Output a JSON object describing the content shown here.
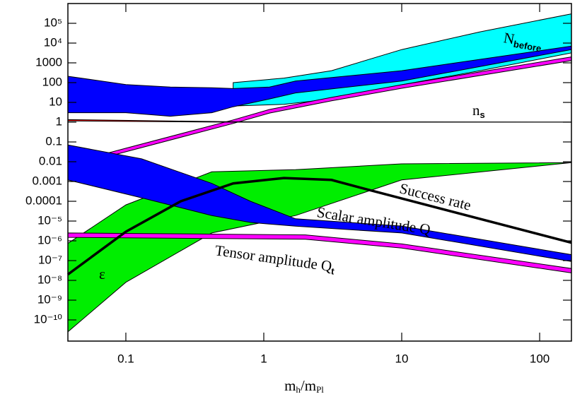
{
  "chart_data": {
    "type": "band",
    "xlabel": [
      "m",
      "h",
      "/m",
      "Pl"
    ],
    "xlim": [
      0.038,
      170
    ],
    "ylim": [
      8.5e-12,
      1000000
    ],
    "log_x": true,
    "log_y": true,
    "xticks": [
      0.1,
      1,
      10,
      100
    ],
    "yticks": [
      {
        "value": 1e-10,
        "label": "10⁻¹⁰"
      },
      {
        "value": 1e-09,
        "label": "10⁻⁹"
      },
      {
        "value": 1e-08,
        "label": "10⁻⁸"
      },
      {
        "value": 1e-07,
        "label": "10⁻⁷"
      },
      {
        "value": 1e-06,
        "label": "10⁻⁶"
      },
      {
        "value": 1e-05,
        "label": "10⁻⁵"
      },
      0.0001,
      0.001,
      0.01,
      0.1,
      1,
      10,
      100,
      1000,
      {
        "value": 10000,
        "label": "10⁴"
      },
      {
        "value": 100000,
        "label": "10⁵"
      }
    ],
    "bands": [
      {
        "color": "#00ffff",
        "x": [
          0.6,
          1.4,
          3.1,
          10,
          37,
          170
        ],
        "upper": [
          100,
          170,
          400,
          4700,
          37000,
          300000
        ],
        "lower": [
          6.6,
          8,
          15,
          78,
          400,
          3200
        ]
      },
      {
        "color": "#0000ff",
        "x": [
          0.038,
          0.1,
          0.21,
          0.42,
          0.6,
          1.1,
          1.7,
          10,
          170
        ],
        "upper": [
          210,
          80,
          60,
          55,
          50,
          60,
          120,
          400,
          7000
        ],
        "lower": [
          3,
          3,
          2,
          3,
          6,
          15,
          30,
          120,
          4700
        ]
      },
      {
        "color": "#ff00ff",
        "x": [
          0.038,
          0.1,
          0.6,
          1.1,
          3.1,
          10,
          170
        ],
        "upper": [
          0.008,
          0.048,
          1.3,
          4.4,
          18,
          78,
          2000
        ],
        "lower": [
          0.0053,
          0.032,
          0.86,
          2.9,
          12,
          52,
          1300
        ]
      },
      {
        "color": "#ff0000",
        "x": [
          0.038,
          0.6,
          170
        ],
        "upper": [
          1.35,
          1.05,
          1.02
        ],
        "lower": [
          1.15,
          1,
          1
        ]
      },
      {
        "color": "#00ee00",
        "x": [
          0.038,
          0.1,
          0.42,
          1.7,
          10,
          170
        ],
        "upper": [
          7.4e-07,
          6.6e-05,
          0.0031,
          0.004,
          0.0078,
          0.009
        ],
        "lower": [
          2.5e-11,
          8e-09,
          2.5e-06,
          1.9e-05,
          0.0012,
          0.009
        ]
      },
      {
        "color": "#0000ff",
        "x": [
          0.038,
          0.13,
          0.42,
          0.8,
          1.7,
          10,
          170
        ],
        "upper": [
          0.07,
          0.014,
          0.0008,
          0.0001,
          1.3e-05,
          5.6e-06,
          2e-07
        ],
        "lower": [
          0.0012,
          0.00015,
          1.9e-05,
          8.5e-06,
          5.5e-06,
          2.5e-06,
          9e-08
        ]
      },
      {
        "color": "#ff00ff",
        "x": [
          0.038,
          2.0,
          10,
          170
        ],
        "upper": [
          2.5e-06,
          2e-06,
          7e-07,
          4e-08
        ],
        "lower": [
          1.5e-06,
          1.2e-06,
          4.3e-07,
          2.4e-08
        ]
      }
    ],
    "lines": [
      {
        "color": "#000000",
        "x": [
          0.038,
          0.1,
          0.25,
          0.6,
          1.4,
          3.1,
          5.6,
          170
        ],
        "values": [
          2e-08,
          2.9e-06,
          0.0001,
          0.0008,
          0.0015,
          0.0012,
          0.0004,
          8e-07
        ]
      }
    ],
    "annotations": [
      {
        "text": "N",
        "sub": "before"
      },
      {
        "text": "n",
        "sub": "s"
      },
      {
        "text": "Success rate"
      },
      {
        "text": "Scalar amplitude Q"
      },
      {
        "text": "Tensor amplitude Q",
        "sub": "t"
      },
      {
        "text": "ε"
      }
    ]
  }
}
